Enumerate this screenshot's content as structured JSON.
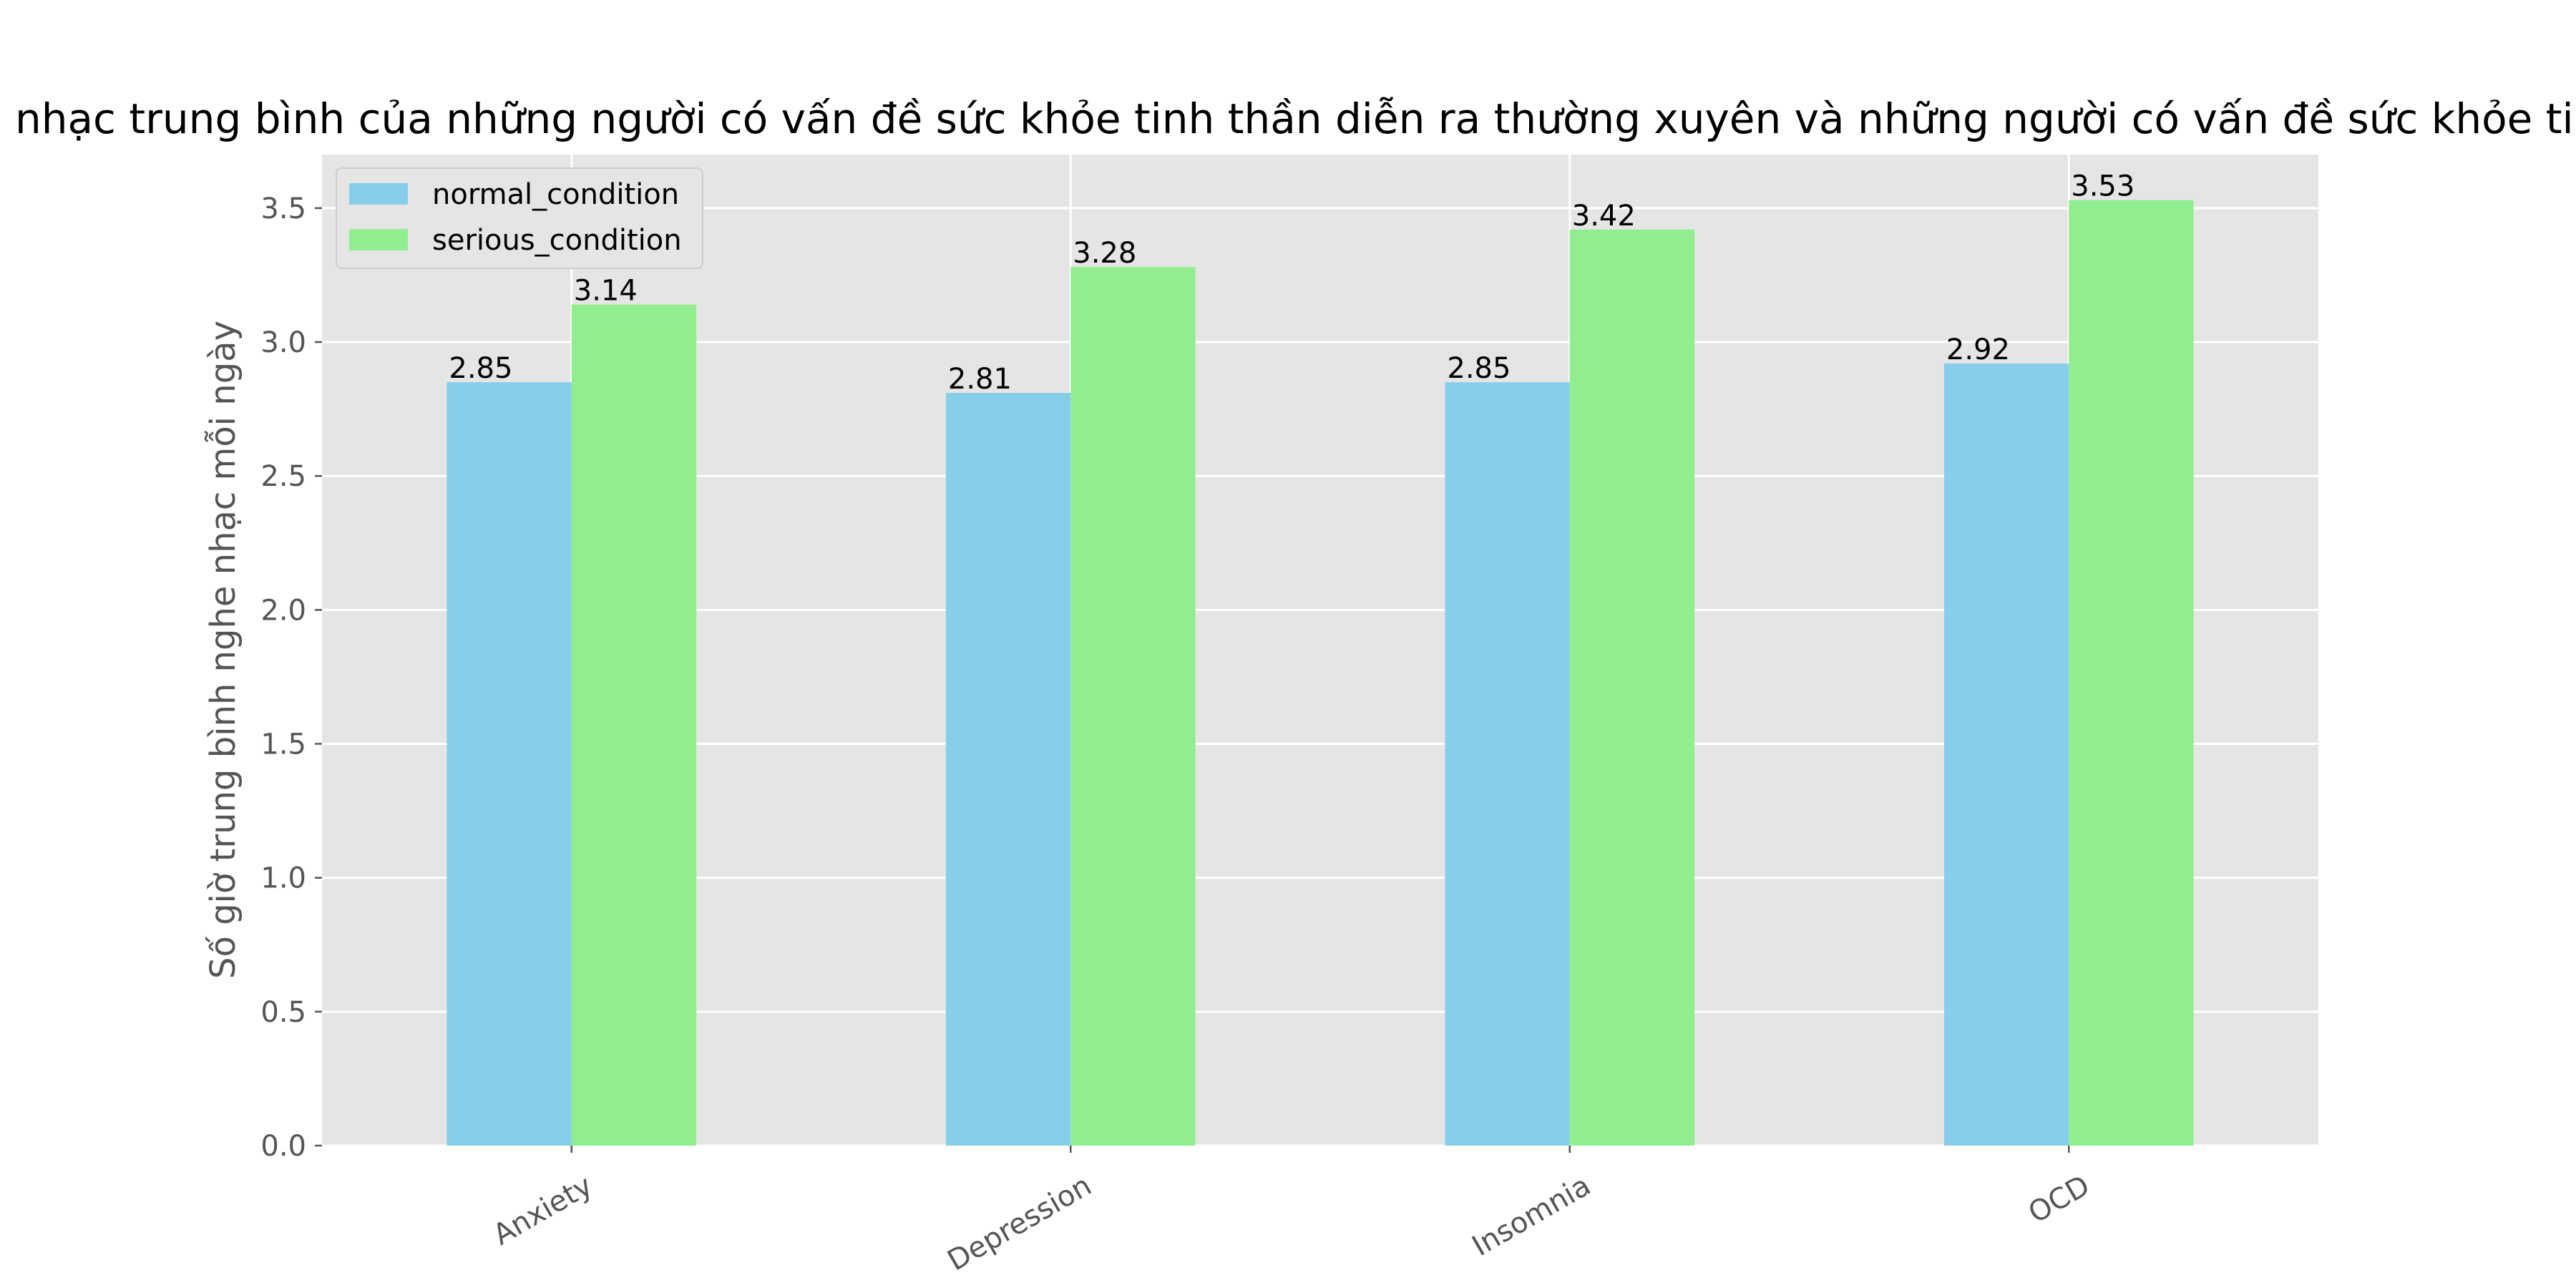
{
  "chart_data": {
    "type": "bar",
    "title": "So sánh số giờ nghe nhạc trung bình của những người có vấn đề sức khỏe tinh thần diễn ra thường xuyên và những người có vấn đề sức khỏe tinh thần ít khi xảy ra",
    "xlabel": "",
    "ylabel": "Số giờ trung bình nghe nhạc mỗi ngày",
    "categories": [
      "Anxiety",
      "Depression",
      "Insomnia",
      "OCD"
    ],
    "series": [
      {
        "name": "normal_condition",
        "color": "#87ceeb",
        "values": [
          2.85,
          2.81,
          2.85,
          2.92
        ]
      },
      {
        "name": "serious_condition",
        "color": "#90ee90",
        "values": [
          3.14,
          3.28,
          3.42,
          3.53
        ]
      }
    ],
    "data_labels": [
      [
        "2.85",
        "2.81",
        "2.85",
        "2.92"
      ],
      [
        "3.14",
        "3.28",
        "3.42",
        "3.53"
      ]
    ],
    "yticks": [
      0.0,
      0.5,
      1.0,
      1.5,
      2.0,
      2.5,
      3.0,
      3.5
    ],
    "ytick_labels": [
      "0.0",
      "0.5",
      "1.0",
      "1.5",
      "2.0",
      "2.5",
      "3.0",
      "3.5"
    ],
    "ylim": [
      0,
      3.7
    ],
    "grid": true,
    "legend_position": "top-left",
    "plot_background": "#e5e5e5",
    "grid_color": "#ffffff"
  }
}
